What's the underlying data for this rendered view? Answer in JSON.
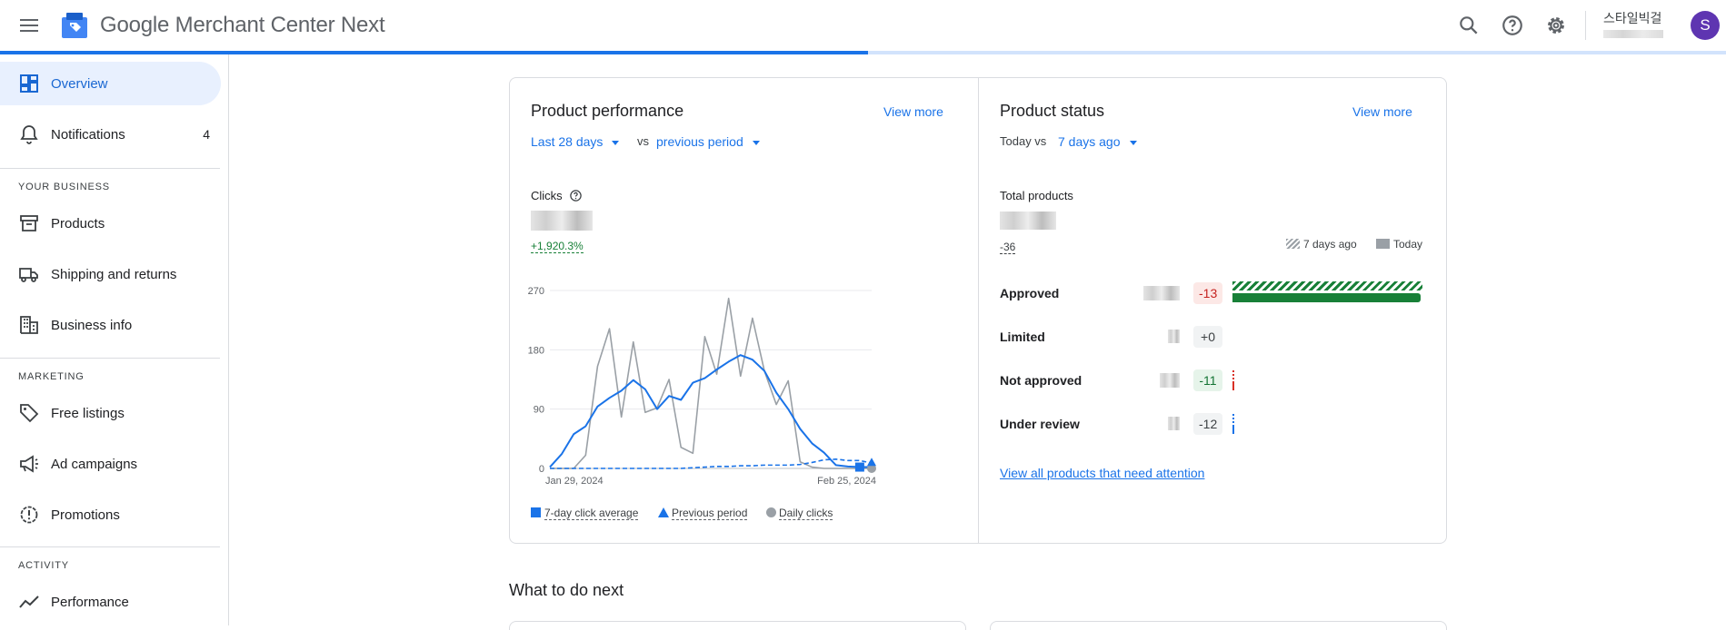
{
  "app": {
    "title": "Google Merchant Center Next"
  },
  "account": {
    "name": "스타일빅걸",
    "avatar_letter": "S"
  },
  "colors": {
    "accent": "#1a73e8",
    "avatar": "#5e35b1",
    "green": "#188038",
    "red": "#d93025"
  },
  "progress": {
    "fraction": 0.503
  },
  "sidebar": {
    "overview": "Overview",
    "notifications": "Notifications",
    "notifications_count": "4",
    "section_business": "YOUR BUSINESS",
    "products": "Products",
    "shipping": "Shipping and returns",
    "business_info": "Business info",
    "section_marketing": "MARKETING",
    "free_listings": "Free listings",
    "ad_campaigns": "Ad campaigns",
    "promotions": "Promotions",
    "section_activity": "ACTIVITY",
    "performance": "Performance"
  },
  "performance": {
    "title": "Product performance",
    "view_more": "View more",
    "period": "Last 28 days",
    "vs": "vs",
    "compare": "previous period",
    "metric_label": "Clicks",
    "change": "+1,920.3%",
    "legend": {
      "avg": "7-day click average",
      "prev": "Previous period",
      "daily": "Daily clicks"
    }
  },
  "status": {
    "title": "Product status",
    "view_more": "View more",
    "today_vs": "Today vs",
    "compare": "7 days ago",
    "total_label": "Total products",
    "total_change": "-36",
    "legend_prev": "7 days ago",
    "legend_today": "Today",
    "rows": [
      {
        "label": "Approved",
        "change": "-13"
      },
      {
        "label": "Limited",
        "change": "+0"
      },
      {
        "label": "Not approved",
        "change": "-11"
      },
      {
        "label": "Under review",
        "change": "-12"
      }
    ],
    "attention_link": "View all products that need attention"
  },
  "next": {
    "title": "What to do next"
  },
  "chart_data": {
    "type": "line",
    "title": "",
    "xlabel": "",
    "ylabel": "Clicks",
    "ylim": [
      0,
      270
    ],
    "yticks": [
      "270",
      "180",
      "90",
      "0"
    ],
    "xtick_labels": [
      "Jan 29, 2024",
      "Feb 25, 2024"
    ],
    "x": [
      "Jan 29",
      "Jan 30",
      "Jan 31",
      "Feb 1",
      "Feb 2",
      "Feb 3",
      "Feb 4",
      "Feb 5",
      "Feb 6",
      "Feb 7",
      "Feb 8",
      "Feb 9",
      "Feb 10",
      "Feb 11",
      "Feb 12",
      "Feb 13",
      "Feb 14",
      "Feb 15",
      "Feb 16",
      "Feb 17",
      "Feb 18",
      "Feb 19",
      "Feb 20",
      "Feb 21",
      "Feb 22",
      "Feb 23",
      "Feb 24",
      "Feb 25"
    ],
    "series": [
      {
        "name": "7-day click average",
        "color": "#1a73e8",
        "style": "solid",
        "values": [
          2,
          22,
          52,
          64,
          94,
          107,
          118,
          134,
          120,
          90,
          110,
          104,
          130,
          137,
          150,
          162,
          172,
          165,
          148,
          115,
          90,
          60,
          38,
          24,
          5,
          3,
          2,
          2
        ]
      },
      {
        "name": "Previous period",
        "color": "#1a73e8",
        "style": "dashed",
        "values": [
          0,
          0,
          0,
          0,
          0,
          0,
          0,
          0,
          0,
          0,
          0,
          0,
          1,
          2,
          3,
          3,
          4,
          4,
          5,
          5,
          5,
          6,
          9,
          13,
          14,
          12,
          12,
          8
        ]
      },
      {
        "name": "Daily clicks",
        "color": "#9aa0a6",
        "style": "solid",
        "values": [
          0,
          0,
          0,
          20,
          155,
          212,
          78,
          192,
          85,
          92,
          135,
          32,
          23,
          200,
          143,
          258,
          140,
          228,
          148,
          97,
          133,
          10,
          2,
          0,
          0,
          0,
          0,
          0
        ]
      }
    ]
  }
}
